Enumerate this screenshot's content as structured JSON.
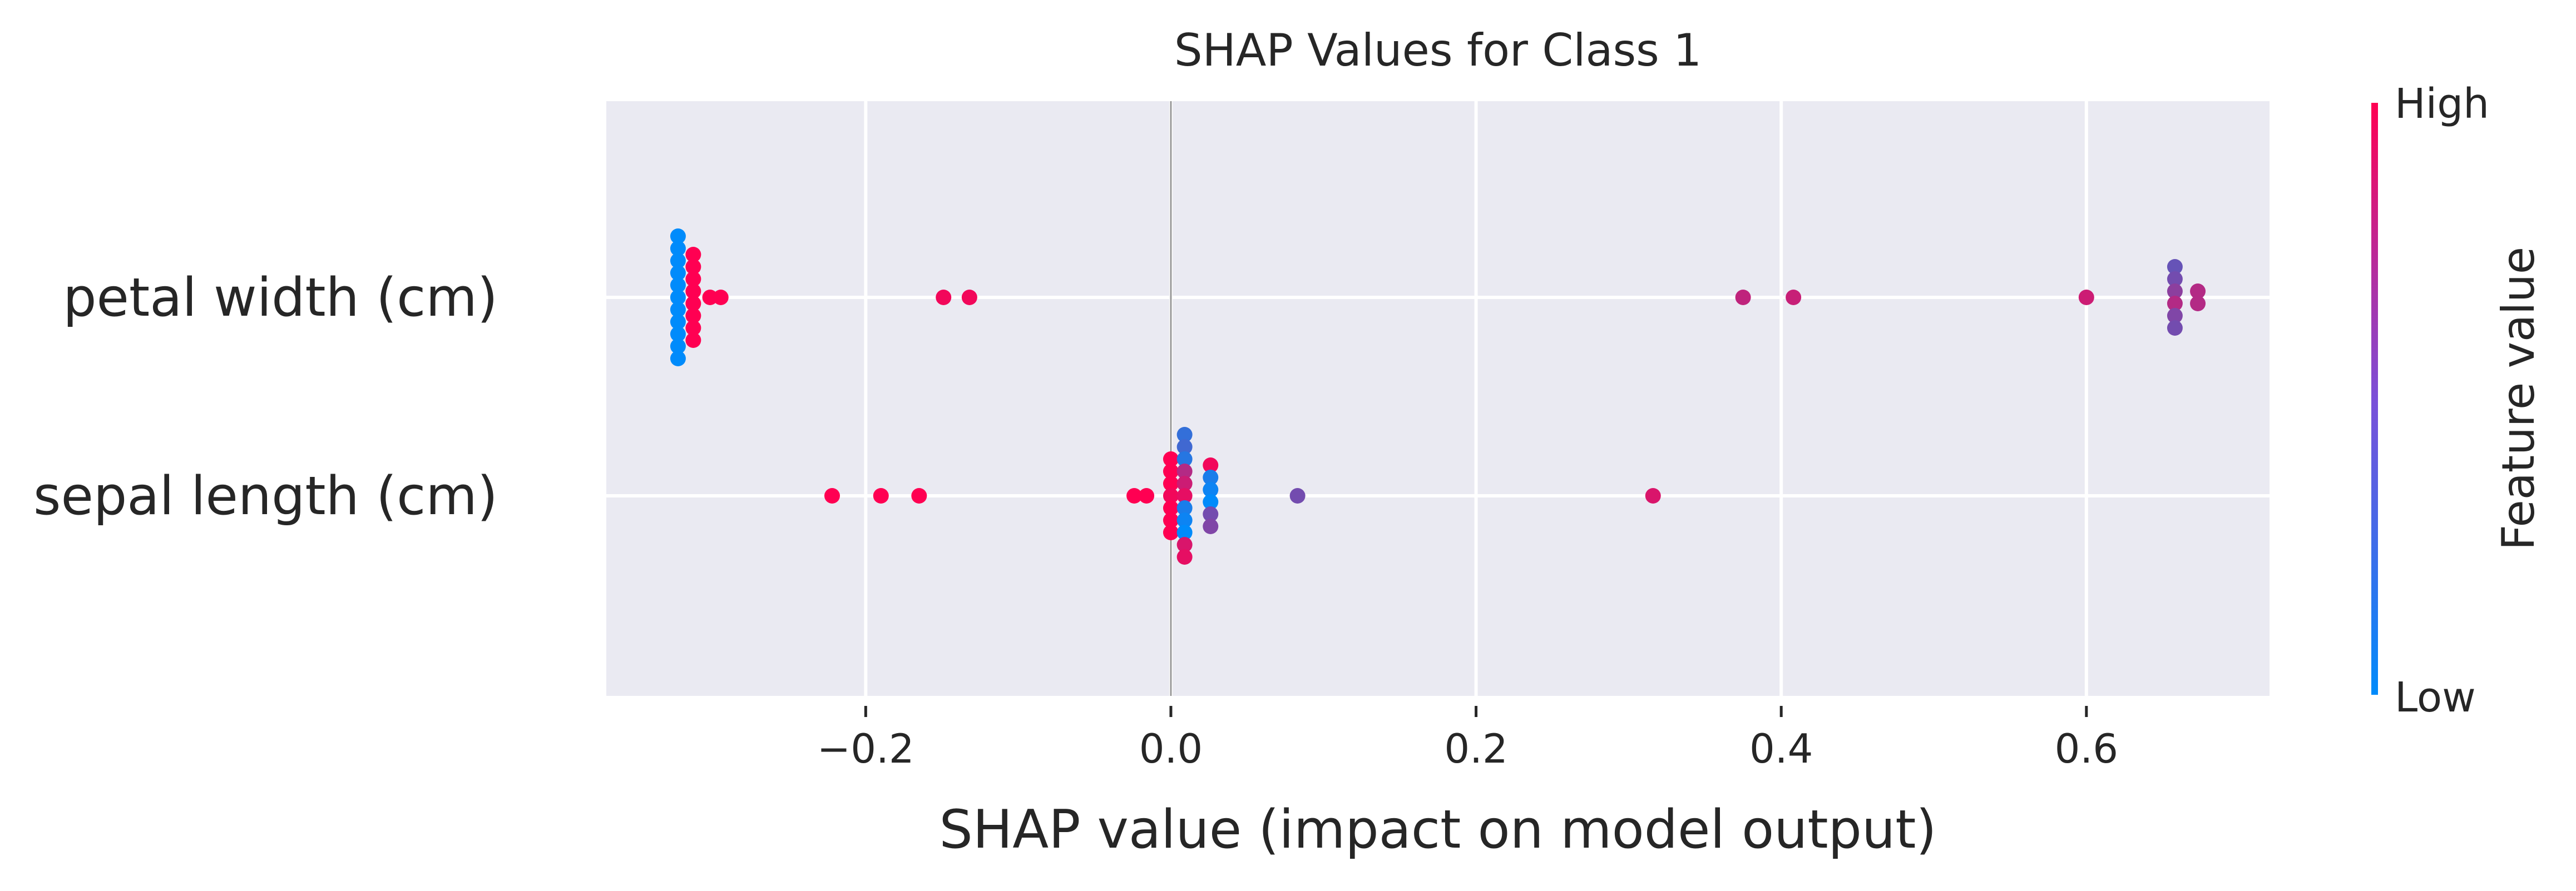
{
  "chart_data": {
    "type": "scatter",
    "title": "SHAP Values for Class 1",
    "xlabel": "SHAP value (impact on model output)",
    "ylabel": "",
    "xlim": [
      -0.37,
      0.72
    ],
    "xticks": [
      -0.2,
      0.0,
      0.2,
      0.4,
      0.6
    ],
    "xtick_labels": [
      "−0.2",
      "0.0",
      "0.2",
      "0.4",
      "0.6"
    ],
    "grid": true,
    "colorbar": {
      "label": "Feature value",
      "high": "High",
      "low": "Low",
      "low_color": "#008bfb",
      "high_color": "#ff0052"
    },
    "background_color": "#eaeaf2",
    "features": [
      {
        "name": "petal width (cm)",
        "points": [
          {
            "x": -0.323,
            "f": 0.0
          },
          {
            "x": -0.323,
            "f": 0.0
          },
          {
            "x": -0.323,
            "f": 0.0
          },
          {
            "x": -0.323,
            "f": 0.0
          },
          {
            "x": -0.323,
            "f": 0.0
          },
          {
            "x": -0.323,
            "f": 0.0
          },
          {
            "x": -0.323,
            "f": 0.0
          },
          {
            "x": -0.323,
            "f": 0.0
          },
          {
            "x": -0.323,
            "f": 0.0
          },
          {
            "x": -0.323,
            "f": 0.0
          },
          {
            "x": -0.323,
            "f": 0.0
          },
          {
            "x": -0.313,
            "f": 1.0
          },
          {
            "x": -0.313,
            "f": 1.0
          },
          {
            "x": -0.313,
            "f": 1.0
          },
          {
            "x": -0.313,
            "f": 1.0
          },
          {
            "x": -0.313,
            "f": 1.0
          },
          {
            "x": -0.313,
            "f": 1.0
          },
          {
            "x": -0.313,
            "f": 1.0
          },
          {
            "x": -0.313,
            "f": 1.0
          },
          {
            "x": -0.302,
            "f": 1.0
          },
          {
            "x": -0.295,
            "f": 1.0
          },
          {
            "x": -0.149,
            "f": 0.95
          },
          {
            "x": -0.132,
            "f": 0.95
          },
          {
            "x": 0.375,
            "f": 0.75
          },
          {
            "x": 0.408,
            "f": 0.78
          },
          {
            "x": 0.6,
            "f": 0.8
          },
          {
            "x": 0.658,
            "f": 0.4
          },
          {
            "x": 0.658,
            "f": 0.45
          },
          {
            "x": 0.658,
            "f": 0.55
          },
          {
            "x": 0.658,
            "f": 0.7
          },
          {
            "x": 0.658,
            "f": 0.5
          },
          {
            "x": 0.658,
            "f": 0.45
          },
          {
            "x": 0.673,
            "f": 0.7
          },
          {
            "x": 0.673,
            "f": 0.7
          }
        ]
      },
      {
        "name": "sepal length (cm)",
        "points": [
          {
            "x": -0.222,
            "f": 1.0
          },
          {
            "x": -0.19,
            "f": 1.0
          },
          {
            "x": -0.165,
            "f": 1.0
          },
          {
            "x": -0.024,
            "f": 1.0
          },
          {
            "x": -0.016,
            "f": 1.0
          },
          {
            "x": 0.0,
            "f": 1.0
          },
          {
            "x": 0.0,
            "f": 1.0
          },
          {
            "x": 0.0,
            "f": 1.0
          },
          {
            "x": 0.0,
            "f": 0.95
          },
          {
            "x": 0.0,
            "f": 1.0
          },
          {
            "x": 0.0,
            "f": 1.0
          },
          {
            "x": 0.0,
            "f": 1.0
          },
          {
            "x": 0.009,
            "f": 0.2
          },
          {
            "x": 0.009,
            "f": 0.25
          },
          {
            "x": 0.009,
            "f": 0.15
          },
          {
            "x": 0.009,
            "f": 0.7
          },
          {
            "x": 0.009,
            "f": 0.8
          },
          {
            "x": 0.009,
            "f": 0.9
          },
          {
            "x": 0.009,
            "f": 0.1
          },
          {
            "x": 0.009,
            "f": 0.05
          },
          {
            "x": 0.009,
            "f": 0.0
          },
          {
            "x": 0.009,
            "f": 0.85
          },
          {
            "x": 0.009,
            "f": 0.9
          },
          {
            "x": 0.026,
            "f": 0.95
          },
          {
            "x": 0.026,
            "f": 0.1
          },
          {
            "x": 0.026,
            "f": 0.05
          },
          {
            "x": 0.026,
            "f": 0.0
          },
          {
            "x": 0.026,
            "f": 0.45
          },
          {
            "x": 0.026,
            "f": 0.5
          },
          {
            "x": 0.083,
            "f": 0.45
          },
          {
            "x": 0.316,
            "f": 0.85
          }
        ]
      }
    ]
  }
}
